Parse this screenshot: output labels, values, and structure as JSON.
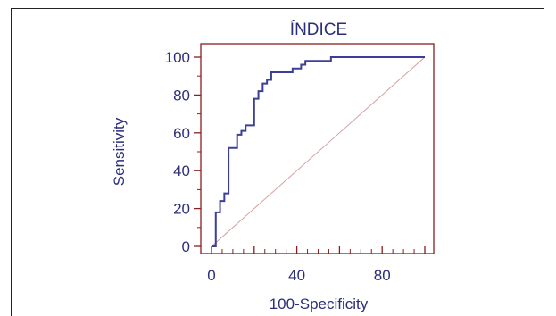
{
  "chart_data": {
    "type": "line",
    "title": "ÍNDICE",
    "xlabel": "100-Specificity",
    "ylabel": "Sensitivity",
    "xlim": [
      0,
      100
    ],
    "ylim": [
      0,
      100
    ],
    "x_ticks": [
      0,
      40,
      80
    ],
    "y_ticks": [
      0,
      20,
      40,
      60,
      80,
      100
    ],
    "grid": false,
    "colors": {
      "roc": "#3b3f95",
      "diagonal": "#d4a0a0",
      "axes": "#8b1e1e",
      "text": "#2b2f7a"
    },
    "series": [
      {
        "x": [
          0,
          2,
          2,
          4,
          4,
          6,
          6,
          8,
          8,
          12,
          12,
          14,
          14,
          16,
          16,
          20,
          20,
          22,
          22,
          24,
          24,
          26,
          26,
          28,
          28,
          38,
          38,
          42,
          42,
          44,
          44,
          56,
          56,
          100
        ],
        "y": [
          0,
          0,
          18,
          18,
          24,
          24,
          28,
          28,
          52,
          52,
          59,
          59,
          61,
          61,
          64,
          64,
          78,
          78,
          82,
          82,
          86,
          86,
          88,
          88,
          92,
          92,
          94,
          94,
          96,
          96,
          98,
          98,
          100,
          100
        ]
      },
      {
        "x": [
          0,
          100
        ],
        "y": [
          0,
          100
        ]
      }
    ]
  }
}
